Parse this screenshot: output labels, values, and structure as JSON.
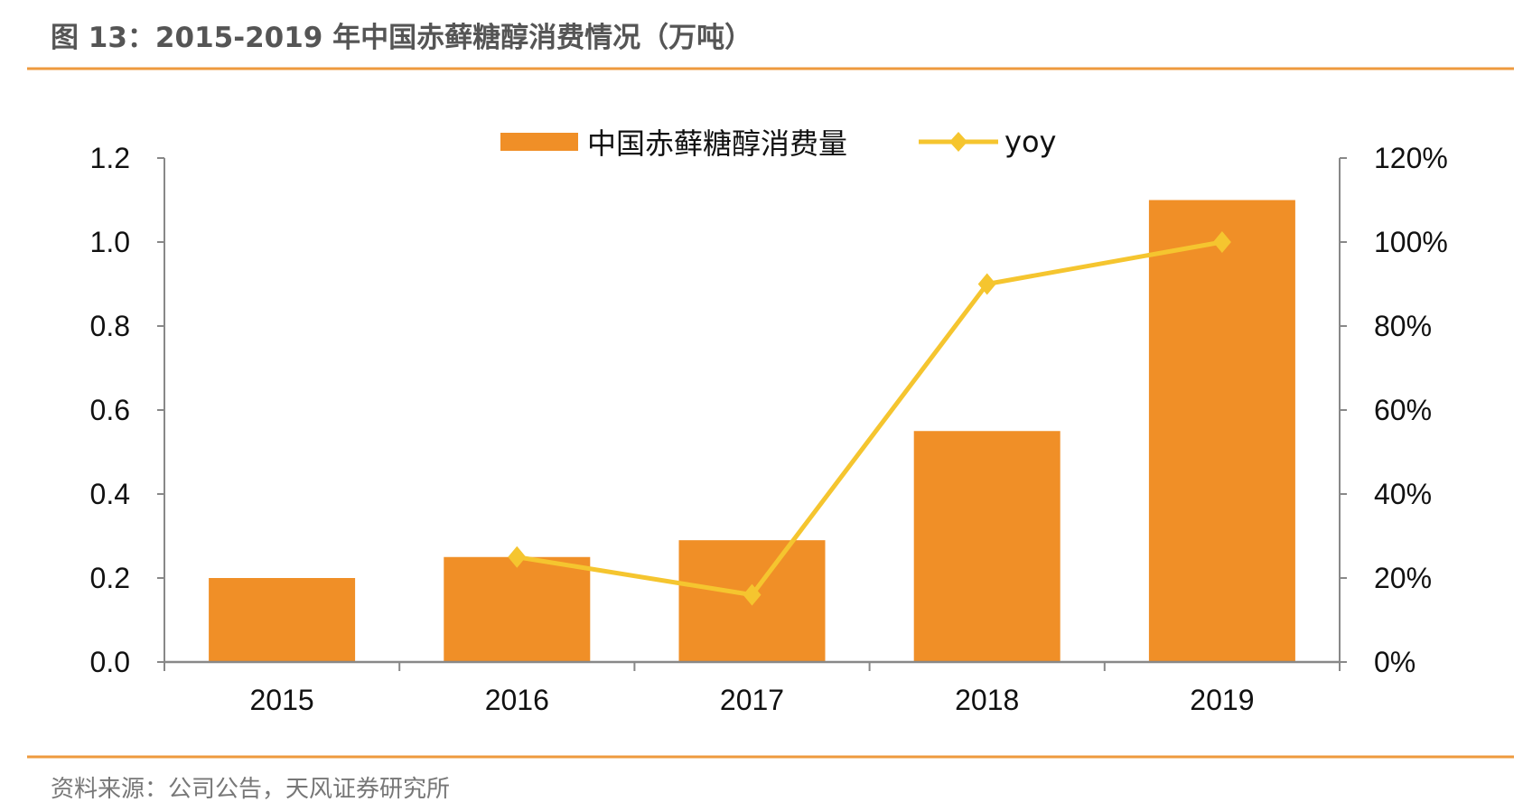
{
  "title": "图 13：2015-2019 年中国赤藓糖醇消费情况（万吨）",
  "source": "资料来源：公司公告，天风证券研究所",
  "colors": {
    "bar": "#F08F27",
    "line": "#F5C52F",
    "rule": "#EE9A3E",
    "axis": "#888888"
  },
  "chart_data": {
    "type": "bar+line",
    "categories": [
      "2015",
      "2016",
      "2017",
      "2018",
      "2019"
    ],
    "series": [
      {
        "name": "中国赤藓糖醇消费量",
        "type": "bar",
        "axis": "left",
        "values": [
          0.2,
          0.25,
          0.29,
          0.55,
          1.1
        ]
      },
      {
        "name": "yoy",
        "type": "line",
        "axis": "right",
        "marker": "diamond",
        "values": [
          null,
          25,
          16,
          90,
          100
        ]
      }
    ],
    "ylim_left": [
      0,
      1.2
    ],
    "yticks_left": [
      "0.0",
      "0.2",
      "0.4",
      "0.6",
      "0.8",
      "1.0",
      "1.2"
    ],
    "ylim_right": [
      0,
      120
    ],
    "yticks_right": [
      "0%",
      "20%",
      "40%",
      "60%",
      "80%",
      "100%",
      "120%"
    ],
    "legend": "top",
    "grid": false
  }
}
